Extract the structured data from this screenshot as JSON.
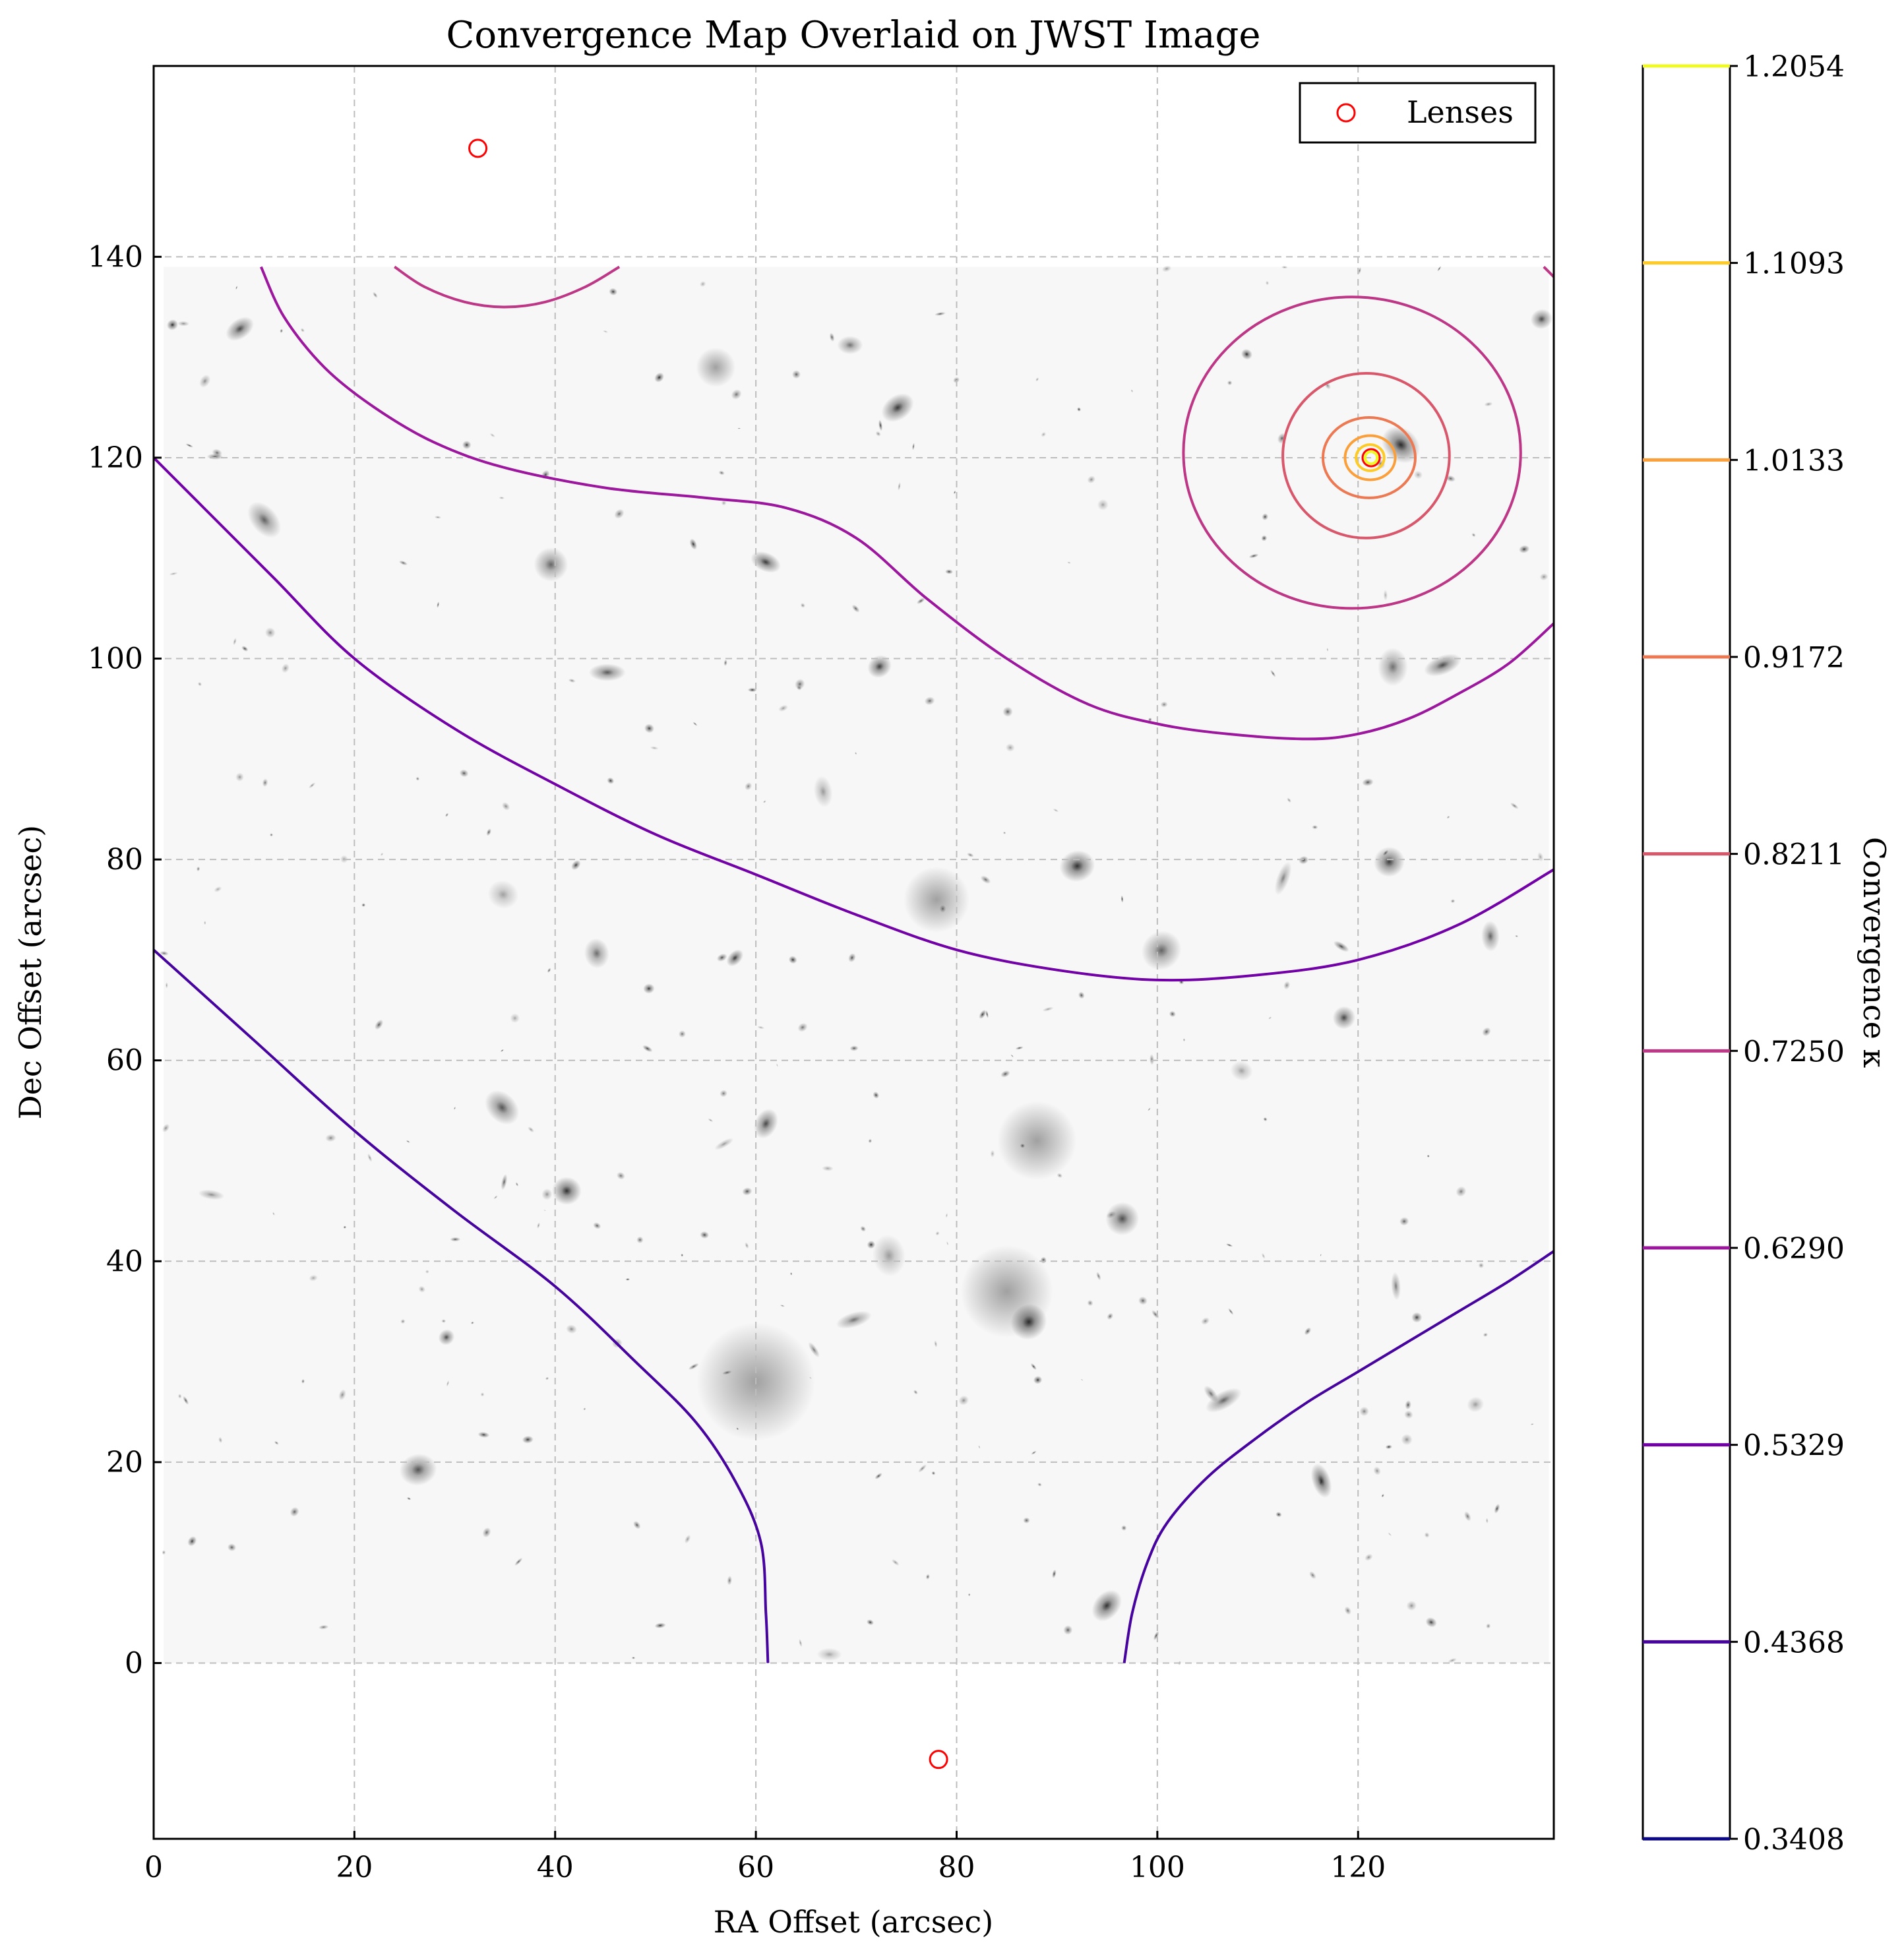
{
  "chart_data": {
    "type": "contour",
    "title": "Convergence Map Overlaid on JWST Image",
    "xlabel": "RA Offset (arcsec)",
    "ylabel": "Dec Offset (arcsec)",
    "xlim": [
      0,
      139.5
    ],
    "ylim": [
      -17.5,
      159
    ],
    "xticks": [
      0,
      20,
      40,
      60,
      80,
      100,
      120
    ],
    "yticks": [
      0,
      20,
      40,
      60,
      80,
      100,
      120,
      140
    ],
    "grid": true,
    "background": "grayscale JWST deep-field image",
    "image_extent": {
      "x": [
        1,
        139
      ],
      "y": [
        0,
        139
      ]
    },
    "colorbar": {
      "label": "Convergence κ",
      "levels": [
        0.3408,
        0.4368,
        0.5329,
        0.629,
        0.725,
        0.8211,
        0.9172,
        1.0133,
        1.1093,
        1.2054
      ],
      "level_labels": [
        "0.3408",
        "0.4368",
        "0.5329",
        "0.6290",
        "0.7250",
        "0.8211",
        "0.9172",
        "1.0133",
        "1.1093",
        "1.2054"
      ],
      "colors": [
        "#0d0887",
        "#46039f",
        "#7201a8",
        "#9c179e",
        "#bd3786",
        "#d8576b",
        "#ed7953",
        "#fb9f3a",
        "#fdca26",
        "#f0f921"
      ]
    },
    "legend": {
      "position": "top-right",
      "entries": [
        {
          "label": "Lenses",
          "marker": "open-circle",
          "color": "#ff0000"
        }
      ]
    },
    "lenses": [
      {
        "x": 32.3,
        "y": 150.8
      },
      {
        "x": 121.3,
        "y": 120.0
      },
      {
        "x": 78.2,
        "y": -9.6
      }
    ],
    "contours": [
      {
        "level": 0.4368,
        "points": [
          [
            0,
            71
          ],
          [
            10,
            62
          ],
          [
            20,
            53
          ],
          [
            30,
            45
          ],
          [
            40,
            37.5
          ],
          [
            48,
            30
          ],
          [
            54,
            24
          ],
          [
            58,
            18
          ],
          [
            60.5,
            12
          ],
          [
            61,
            5
          ],
          [
            61.2,
            0
          ]
        ]
      },
      {
        "level": 0.4368,
        "points": [
          [
            96.7,
            0
          ],
          [
            97.5,
            5
          ],
          [
            99,
            10
          ],
          [
            101,
            14
          ],
          [
            105,
            18.5
          ],
          [
            110,
            22.5
          ],
          [
            115,
            26
          ],
          [
            120,
            29
          ],
          [
            125,
            32
          ],
          [
            130,
            35
          ],
          [
            135,
            38
          ],
          [
            139.5,
            41
          ]
        ]
      },
      {
        "level": 0.5329,
        "points": [
          [
            0,
            120
          ],
          [
            5,
            115
          ],
          [
            12,
            108
          ],
          [
            20,
            100
          ],
          [
            30,
            93
          ],
          [
            40,
            87.5
          ],
          [
            50,
            82.5
          ],
          [
            60,
            78.5
          ],
          [
            70,
            74.5
          ],
          [
            80,
            71
          ],
          [
            90,
            69
          ],
          [
            100,
            68
          ],
          [
            110,
            68.5
          ],
          [
            120,
            70
          ],
          [
            130,
            73.5
          ],
          [
            139.5,
            79
          ]
        ]
      },
      {
        "level": 0.629,
        "points": [
          [
            10.7,
            139
          ],
          [
            13,
            134
          ],
          [
            17,
            129
          ],
          [
            22,
            125
          ],
          [
            28,
            121.5
          ],
          [
            35,
            119
          ],
          [
            45,
            117
          ],
          [
            55,
            116
          ],
          [
            63,
            115
          ],
          [
            70,
            112
          ],
          [
            77,
            106
          ],
          [
            85,
            100
          ],
          [
            93,
            95.5
          ],
          [
            100,
            93.5
          ],
          [
            107,
            92.5
          ],
          [
            115,
            92
          ],
          [
            120,
            92.5
          ],
          [
            125,
            94
          ],
          [
            130,
            96.5
          ],
          [
            135,
            99.5
          ],
          [
            139.5,
            103.5
          ]
        ]
      },
      {
        "level": 0.725,
        "points": [
          [
            24,
            139
          ],
          [
            27,
            137
          ],
          [
            31,
            135.5
          ],
          [
            35,
            135
          ],
          [
            39,
            135.5
          ],
          [
            43,
            137
          ],
          [
            46.4,
            139
          ]
        ]
      },
      {
        "level": 0.725,
        "points": [
          [
            138.5,
            139
          ],
          [
            139.5,
            138
          ]
        ]
      },
      {
        "level": 0.725,
        "circle": {
          "cx": 119.4,
          "cy": 120.5,
          "rx": 16.8,
          "ry": 15.5
        }
      },
      {
        "level": 0.8211,
        "circle": {
          "cx": 120.8,
          "cy": 120.2,
          "rx": 8.3,
          "ry": 8.2
        }
      },
      {
        "level": 0.9172,
        "circle": {
          "cx": 121.1,
          "cy": 120.0,
          "rx": 4.6,
          "ry": 4.0
        }
      },
      {
        "level": 1.0133,
        "circle": {
          "cx": 121.2,
          "cy": 120.0,
          "rx": 2.5,
          "ry": 2.2
        }
      },
      {
        "level": 1.1093,
        "circle": {
          "cx": 121.2,
          "cy": 120.0,
          "rx": 1.4,
          "ry": 1.3
        }
      },
      {
        "level": 1.2054,
        "circle": {
          "cx": 121.3,
          "cy": 120.0,
          "rx": 0.6,
          "ry": 0.6
        }
      }
    ]
  }
}
